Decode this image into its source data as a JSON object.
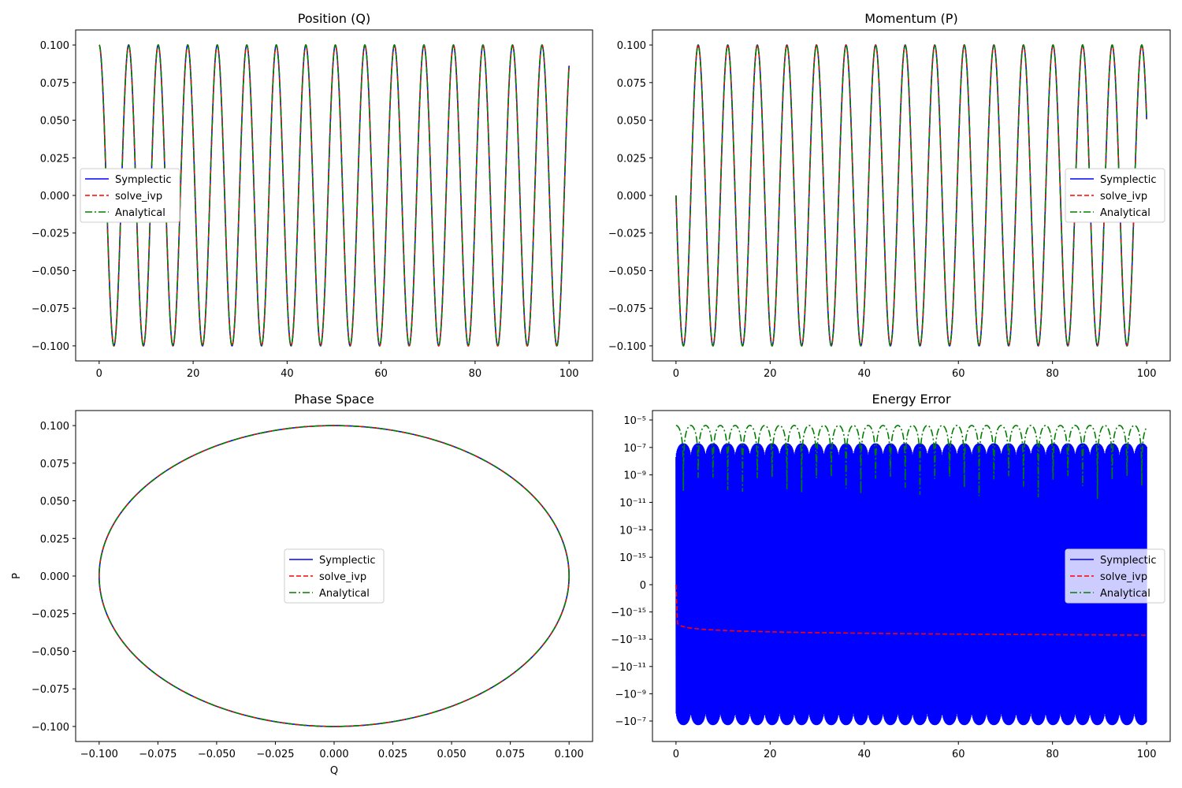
{
  "chart_data": [
    {
      "type": "line",
      "title": "Position (Q)",
      "xlabel": "",
      "ylabel": "",
      "xlim": [
        -5,
        105
      ],
      "ylim": [
        -0.11,
        0.11
      ],
      "xticks": [
        0,
        20,
        40,
        60,
        80,
        100
      ],
      "xtick_labels": [
        "0",
        "20",
        "40",
        "60",
        "80",
        "100"
      ],
      "yticks": [
        -0.1,
        -0.075,
        -0.05,
        -0.025,
        0,
        0.025,
        0.05,
        0.075,
        0.1
      ],
      "ytick_labels": [
        "−0.100",
        "−0.075",
        "−0.050",
        "−0.025",
        "0.000",
        "0.025",
        "0.050",
        "0.075",
        "0.100"
      ],
      "legend": "center-left",
      "grid": false,
      "series": [
        {
          "name": "Symplectic",
          "color": "#0000ff",
          "dash": "solid",
          "formula": "Q = 0.1*cos(t)",
          "t_range": [
            0,
            100
          ],
          "amplitude": 0.1,
          "omega": 1
        },
        {
          "name": "solve_ivp",
          "color": "#ff0000",
          "dash": "dashed",
          "formula": "Q = 0.1*cos(t)",
          "t_range": [
            0,
            100
          ],
          "amplitude": 0.1,
          "omega": 1
        },
        {
          "name": "Analytical",
          "color": "#008000",
          "dash": "dashdot",
          "formula": "Q = 0.1*cos(t)",
          "t_range": [
            0,
            100
          ],
          "amplitude": 0.1,
          "omega": 1
        }
      ]
    },
    {
      "type": "line",
      "title": "Momentum (P)",
      "xlabel": "",
      "ylabel": "",
      "xlim": [
        -5,
        105
      ],
      "ylim": [
        -0.11,
        0.11
      ],
      "xticks": [
        0,
        20,
        40,
        60,
        80,
        100
      ],
      "xtick_labels": [
        "0",
        "20",
        "40",
        "60",
        "80",
        "100"
      ],
      "yticks": [
        -0.1,
        -0.075,
        -0.05,
        -0.025,
        0,
        0.025,
        0.05,
        0.075,
        0.1
      ],
      "ytick_labels": [
        "−0.100",
        "−0.075",
        "−0.050",
        "−0.025",
        "0.000",
        "0.025",
        "0.050",
        "0.075",
        "0.100"
      ],
      "legend": "center-right",
      "grid": false,
      "series": [
        {
          "name": "Symplectic",
          "color": "#0000ff",
          "dash": "solid",
          "formula": "P = -0.1*sin(t)",
          "t_range": [
            0,
            100
          ],
          "amplitude": 0.1,
          "omega": 1
        },
        {
          "name": "solve_ivp",
          "color": "#ff0000",
          "dash": "dashed",
          "formula": "P = -0.1*sin(t)",
          "t_range": [
            0,
            100
          ],
          "amplitude": 0.1,
          "omega": 1
        },
        {
          "name": "Analytical",
          "color": "#008000",
          "dash": "dashdot",
          "formula": "P = -0.1*sin(t)",
          "t_range": [
            0,
            100
          ],
          "amplitude": 0.1,
          "omega": 1
        }
      ]
    },
    {
      "type": "line",
      "title": "Phase Space",
      "xlabel": "Q",
      "ylabel": "P",
      "xlim": [
        -0.11,
        0.11
      ],
      "ylim": [
        -0.11,
        0.11
      ],
      "xticks": [
        -0.1,
        -0.075,
        -0.05,
        -0.025,
        0,
        0.025,
        0.05,
        0.075,
        0.1
      ],
      "xtick_labels": [
        "−0.100",
        "−0.075",
        "−0.050",
        "−0.025",
        "0.000",
        "0.025",
        "0.050",
        "0.075",
        "0.100"
      ],
      "yticks": [
        -0.1,
        -0.075,
        -0.05,
        -0.025,
        0,
        0.025,
        0.05,
        0.075,
        0.1
      ],
      "ytick_labels": [
        "−0.100",
        "−0.075",
        "−0.050",
        "−0.025",
        "0.000",
        "0.025",
        "0.050",
        "0.075",
        "0.100"
      ],
      "legend": "center",
      "grid": false,
      "series": [
        {
          "name": "Symplectic",
          "color": "#0000ff",
          "dash": "solid",
          "formula": "circle radius 0.1",
          "radius": 0.1
        },
        {
          "name": "solve_ivp",
          "color": "#ff0000",
          "dash": "dashed",
          "formula": "circle radius 0.1",
          "radius": 0.1
        },
        {
          "name": "Analytical",
          "color": "#008000",
          "dash": "dashdot",
          "formula": "circle radius 0.1",
          "radius": 0.1
        }
      ]
    },
    {
      "type": "line",
      "title": "Energy Error",
      "xlabel": "",
      "ylabel": "",
      "yscale": "symlog",
      "xlim": [
        -5,
        105
      ],
      "ylim": [
        -1e-06,
        0.0001
      ],
      "xticks": [
        0,
        20,
        40,
        60,
        80,
        100
      ],
      "xtick_labels": [
        "0",
        "20",
        "40",
        "60",
        "80",
        "100"
      ],
      "ytick_labels": [
        "10⁻⁵",
        "10⁻⁷",
        "10⁻⁹",
        "10⁻¹¹",
        "10⁻¹³",
        "10⁻¹⁵",
        "0",
        "−10⁻¹⁵",
        "−10⁻¹³",
        "−10⁻¹¹",
        "−10⁻⁹",
        "−10⁻⁷"
      ],
      "legend": "center-right",
      "grid": false,
      "series": [
        {
          "name": "Symplectic",
          "color": "#0000ff",
          "dash": "solid",
          "description": "oscillates between about +2e-7 and -2e-7",
          "range": [
            -2e-07,
            2e-07
          ]
        },
        {
          "name": "solve_ivp",
          "color": "#ff0000",
          "dash": "dashed",
          "description": "drifts from 0 down to about -5e-14",
          "start": 0,
          "end": -5e-14
        },
        {
          "name": "Analytical",
          "color": "#008000",
          "dash": "dashdot",
          "description": "oscillates up to about 4e-6",
          "peak": 4e-06
        }
      ]
    }
  ]
}
